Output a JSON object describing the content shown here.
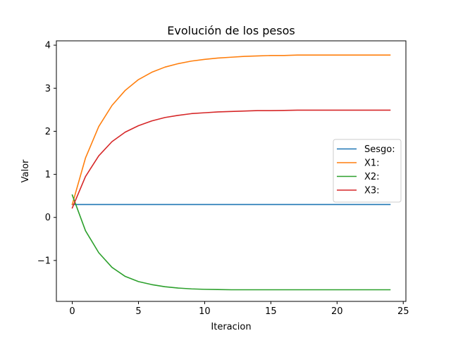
{
  "chart_data": {
    "type": "line",
    "title": "Evolución de los pesos",
    "xlabel": "Iteracion",
    "ylabel": "Valor",
    "xlim": [
      -1.2,
      25.2
    ],
    "ylim": [
      -1.95,
      4.1
    ],
    "xticks": [
      0,
      5,
      10,
      15,
      20,
      25
    ],
    "yticks": [
      -1,
      0,
      1,
      2,
      3,
      4
    ],
    "grid": false,
    "legend_position": "center-right",
    "x": [
      0,
      1,
      2,
      3,
      4,
      5,
      6,
      7,
      8,
      9,
      10,
      11,
      12,
      13,
      14,
      15,
      16,
      17,
      18,
      19,
      20,
      21,
      22,
      23,
      24
    ],
    "series": [
      {
        "name": "Sesgo:",
        "color": "#1f77b4",
        "values": [
          0.3,
          0.3,
          0.3,
          0.3,
          0.3,
          0.3,
          0.3,
          0.3,
          0.3,
          0.3,
          0.3,
          0.3,
          0.3,
          0.3,
          0.3,
          0.3,
          0.3,
          0.3,
          0.3,
          0.3,
          0.3,
          0.3,
          0.3,
          0.3,
          0.3
        ]
      },
      {
        "name": "X1:",
        "color": "#ff7f0e",
        "values": [
          0.3,
          1.38,
          2.11,
          2.6,
          2.95,
          3.2,
          3.37,
          3.49,
          3.57,
          3.63,
          3.67,
          3.7,
          3.72,
          3.74,
          3.75,
          3.76,
          3.76,
          3.77,
          3.77,
          3.77,
          3.77,
          3.77,
          3.77,
          3.77,
          3.77
        ]
      },
      {
        "name": "X2:",
        "color": "#2ca02c",
        "values": [
          0.52,
          -0.31,
          -0.82,
          -1.16,
          -1.37,
          -1.49,
          -1.56,
          -1.61,
          -1.64,
          -1.66,
          -1.67,
          -1.675,
          -1.68,
          -1.68,
          -1.68,
          -1.68,
          -1.68,
          -1.68,
          -1.68,
          -1.68,
          -1.68,
          -1.68,
          -1.68,
          -1.68,
          -1.68
        ]
      },
      {
        "name": "X3:",
        "color": "#d62728",
        "values": [
          0.22,
          0.95,
          1.43,
          1.76,
          1.98,
          2.13,
          2.24,
          2.32,
          2.37,
          2.41,
          2.43,
          2.45,
          2.46,
          2.47,
          2.48,
          2.48,
          2.485,
          2.49,
          2.49,
          2.49,
          2.49,
          2.49,
          2.49,
          2.49,
          2.49
        ]
      }
    ]
  }
}
